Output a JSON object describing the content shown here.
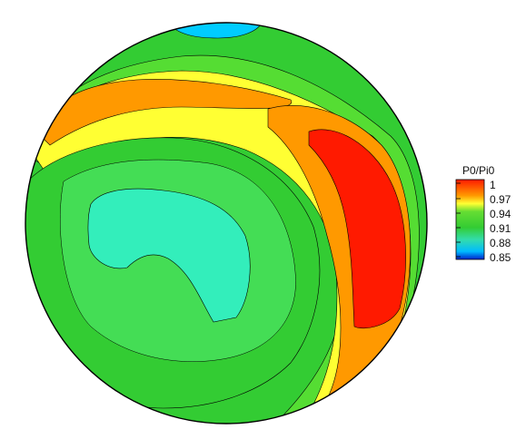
{
  "chart_data": {
    "type": "heatmap",
    "variable_label": "P0/Pi0",
    "colorbar": {
      "ticks": [
        "1",
        "0.97",
        "0.94",
        "0.91",
        "0.88",
        "0.85"
      ],
      "tick_values": [
        1.0,
        0.97,
        0.94,
        0.91,
        0.88,
        0.85
      ],
      "range": [
        0.85,
        1.0
      ],
      "placement": "right"
    },
    "field_features": [
      {
        "region": "right side crescent",
        "value": 1.0
      },
      {
        "region": "upper-left band",
        "value": 0.97
      },
      {
        "region": "top edge",
        "value": 0.88
      },
      {
        "region": "left-center core",
        "value": 0.91
      }
    ],
    "colors": {
      "level_1_00": "#ff1a00",
      "level_0_97": "#ff9900",
      "level_0_955": "#ffff33",
      "level_0_94": "#33cc33",
      "level_0_91": "#33eebb",
      "level_0_88": "#00ccff",
      "level_0_85": "#0022cc"
    }
  }
}
